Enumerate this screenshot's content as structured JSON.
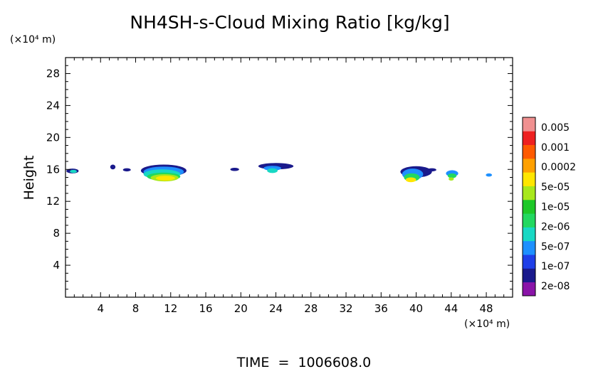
{
  "chart_data": {
    "type": "heatmap",
    "title": "NH4SH-s-Cloud Mixing Ratio [kg/kg]",
    "xlabel": "",
    "ylabel": "Height",
    "x_unit": "(×10⁴ m)",
    "y_unit": "(×10⁴ m)",
    "xlim": [
      0,
      51
    ],
    "ylim": [
      0,
      30
    ],
    "x_ticks": [
      4,
      8,
      12,
      16,
      20,
      24,
      28,
      32,
      36,
      40,
      44,
      48
    ],
    "y_ticks": [
      4,
      8,
      12,
      16,
      20,
      24,
      28
    ],
    "grid": false,
    "footer": "TIME  =  1006608.0",
    "colorbar": {
      "labels": [
        "0.005",
        "0.001",
        "0.0002",
        "5e-05",
        "1e-05",
        "2e-06",
        "5e-07",
        "1e-07",
        "2e-08"
      ],
      "colors": [
        "#8a14a8",
        "#1a1a8c",
        "#1f3fe8",
        "#1e90ff",
        "#18d8c4",
        "#22d860",
        "#1ec828",
        "#a8e81c",
        "#ffe600",
        "#ffa000",
        "#ff5a00",
        "#ee2020",
        "#f09090"
      ]
    },
    "cells": [
      {
        "x": 0.8,
        "y": 15.8,
        "rx": 0.7,
        "ry": 0.3,
        "level": 1
      },
      {
        "x": 0.9,
        "y": 15.75,
        "rx": 0.4,
        "ry": 0.2,
        "level": 4
      },
      {
        "x": 5.4,
        "y": 16.3,
        "rx": 0.3,
        "ry": 0.3,
        "level": 1
      },
      {
        "x": 7.0,
        "y": 15.95,
        "rx": 0.45,
        "ry": 0.2,
        "level": 1
      },
      {
        "x": 11.2,
        "y": 15.85,
        "rx": 2.6,
        "ry": 0.75,
        "level": 1
      },
      {
        "x": 11.2,
        "y": 15.7,
        "rx": 2.3,
        "ry": 0.65,
        "level": 3
      },
      {
        "x": 11.0,
        "y": 15.4,
        "rx": 2.1,
        "ry": 0.6,
        "level": 4
      },
      {
        "x": 11.2,
        "y": 15.1,
        "rx": 1.9,
        "ry": 0.5,
        "level": 5
      },
      {
        "x": 11.3,
        "y": 14.95,
        "rx": 1.6,
        "ry": 0.45,
        "level": 7
      },
      {
        "x": 11.4,
        "y": 14.9,
        "rx": 1.1,
        "ry": 0.3,
        "level": 8
      },
      {
        "x": 19.3,
        "y": 16.0,
        "rx": 0.5,
        "ry": 0.2,
        "level": 1
      },
      {
        "x": 24.0,
        "y": 16.4,
        "rx": 2.0,
        "ry": 0.4,
        "level": 1
      },
      {
        "x": 23.6,
        "y": 16.15,
        "rx": 1.0,
        "ry": 0.3,
        "level": 3
      },
      {
        "x": 23.6,
        "y": 15.85,
        "rx": 0.6,
        "ry": 0.3,
        "level": 4
      },
      {
        "x": 40.0,
        "y": 15.7,
        "rx": 1.8,
        "ry": 0.7,
        "level": 1
      },
      {
        "x": 39.6,
        "y": 15.4,
        "rx": 1.2,
        "ry": 0.7,
        "level": 3
      },
      {
        "x": 39.5,
        "y": 15.0,
        "rx": 0.9,
        "ry": 0.5,
        "level": 5
      },
      {
        "x": 39.4,
        "y": 14.7,
        "rx": 0.6,
        "ry": 0.3,
        "level": 8
      },
      {
        "x": 41.8,
        "y": 15.95,
        "rx": 0.5,
        "ry": 0.2,
        "level": 1
      },
      {
        "x": 44.1,
        "y": 15.5,
        "rx": 0.7,
        "ry": 0.4,
        "level": 3
      },
      {
        "x": 44.1,
        "y": 15.2,
        "rx": 0.5,
        "ry": 0.3,
        "level": 5
      },
      {
        "x": 44.0,
        "y": 14.8,
        "rx": 0.3,
        "ry": 0.2,
        "level": 7
      },
      {
        "x": 48.3,
        "y": 15.3,
        "rx": 0.35,
        "ry": 0.2,
        "level": 3
      }
    ]
  }
}
